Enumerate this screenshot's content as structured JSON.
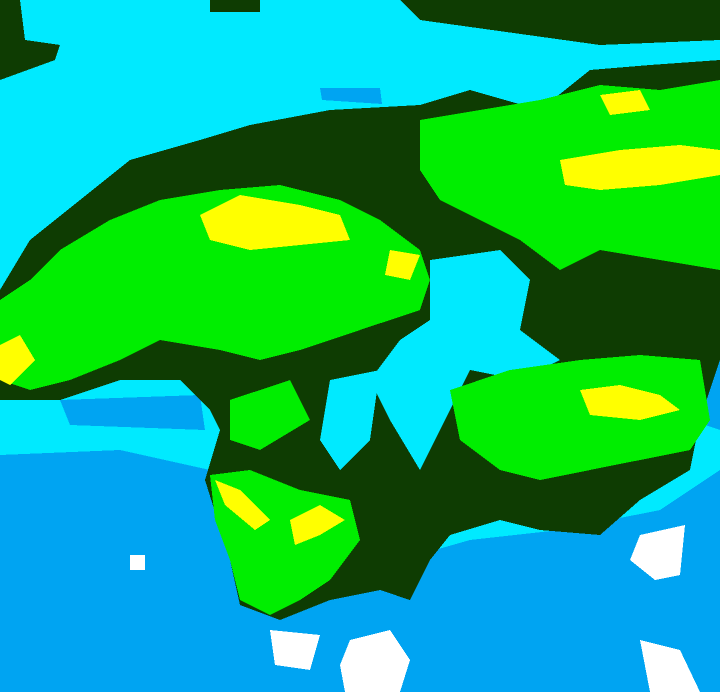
{
  "map": {
    "palette": {
      "cyan": "#00eaff",
      "blue": "#00a4f2",
      "dark_green": "#0e3c02",
      "green": "#00ee00",
      "yellow": "#ffff00",
      "white": "#ffffff"
    }
  }
}
